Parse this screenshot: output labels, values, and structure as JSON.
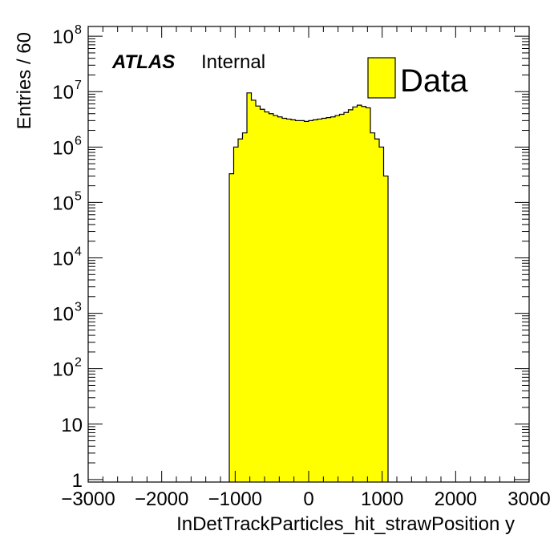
{
  "chart_data": {
    "type": "bar",
    "subtype": "step-histogram",
    "xlabel": "InDetTrackParticles_hit_strawPosition y",
    "ylabel": "Entries / 60",
    "xlim": [
      -3000,
      3000
    ],
    "ylim": [
      0.9,
      150000000
    ],
    "yscale": "log",
    "bin_width": 60,
    "x_ticks": [
      "−3000",
      "−2000",
      "−1000",
      "0",
      "1000",
      "2000",
      "3000"
    ],
    "y_ticks": [
      {
        "base": "1",
        "exp": ""
      },
      {
        "base": "10",
        "exp": ""
      },
      {
        "base": "10",
        "exp": "2"
      },
      {
        "base": "10",
        "exp": "3"
      },
      {
        "base": "10",
        "exp": "4"
      },
      {
        "base": "10",
        "exp": "5"
      },
      {
        "base": "10",
        "exp": "6"
      },
      {
        "base": "10",
        "exp": "7"
      },
      {
        "base": "10",
        "exp": "8"
      }
    ],
    "grid": false,
    "legend_position": "top-right",
    "series": [
      {
        "name": "Data",
        "color": "#ffff00",
        "bin_edges": [
          -1080,
          -1020,
          -960,
          -900,
          -840,
          -780,
          -720,
          -660,
          -600,
          -540,
          -480,
          -420,
          -360,
          -300,
          -240,
          -180,
          -120,
          -60,
          0,
          60,
          120,
          180,
          240,
          300,
          360,
          420,
          480,
          540,
          600,
          660,
          720,
          780,
          840,
          900,
          960,
          1020,
          1080
        ],
        "values": [
          330000,
          1000000,
          1400000,
          1800000,
          9500000,
          7000000,
          5500000,
          4800000,
          4300000,
          4000000,
          3700000,
          3500000,
          3300000,
          3200000,
          3100000,
          3000000,
          3000000,
          2900000,
          3000000,
          3100000,
          3200000,
          3300000,
          3400000,
          3500000,
          3700000,
          3900000,
          4200000,
          4700000,
          5300000,
          5700000,
          5400000,
          5100000,
          1800000,
          1400000,
          1000000,
          300000
        ]
      }
    ]
  },
  "annotations": {
    "atlas": "ATLAS",
    "internal": "Internal"
  },
  "legend": {
    "entries": [
      {
        "label": "Data",
        "color": "#ffff00"
      }
    ]
  }
}
